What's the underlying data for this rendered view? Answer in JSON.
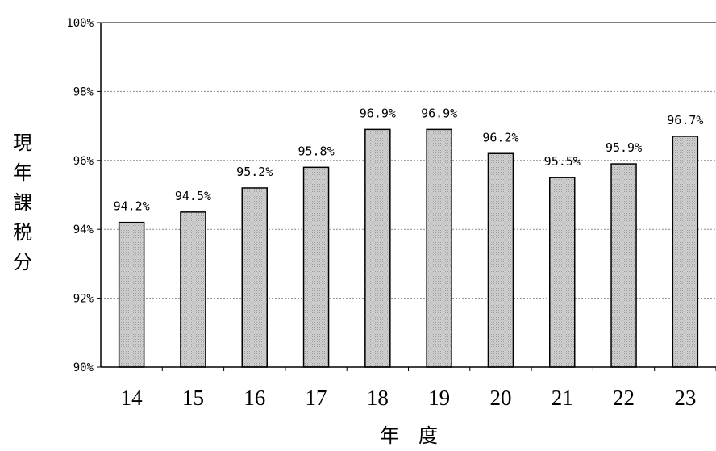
{
  "chart_data": {
    "type": "bar",
    "categories": [
      "14",
      "15",
      "16",
      "17",
      "18",
      "19",
      "20",
      "21",
      "22",
      "23"
    ],
    "values": [
      94.2,
      94.5,
      95.2,
      95.8,
      96.9,
      96.9,
      96.2,
      95.5,
      95.9,
      96.7
    ],
    "data_labels": [
      "94.2%",
      "94.5%",
      "95.2%",
      "95.8%",
      "96.9%",
      "96.9%",
      "96.2%",
      "95.5%",
      "95.9%",
      "96.7%"
    ],
    "title": "",
    "xlabel": "年　度",
    "ylabel": "現年課税分",
    "ylim": [
      90,
      100
    ],
    "yticks": [
      90,
      92,
      94,
      96,
      98,
      100
    ],
    "ytick_labels": [
      "90%",
      "92%",
      "94%",
      "96%",
      "98%",
      "100%"
    ],
    "grid": "horizontal dashed",
    "legend": "none",
    "bar_fill": "#c8c8c8",
    "bar_stroke": "#000000"
  }
}
